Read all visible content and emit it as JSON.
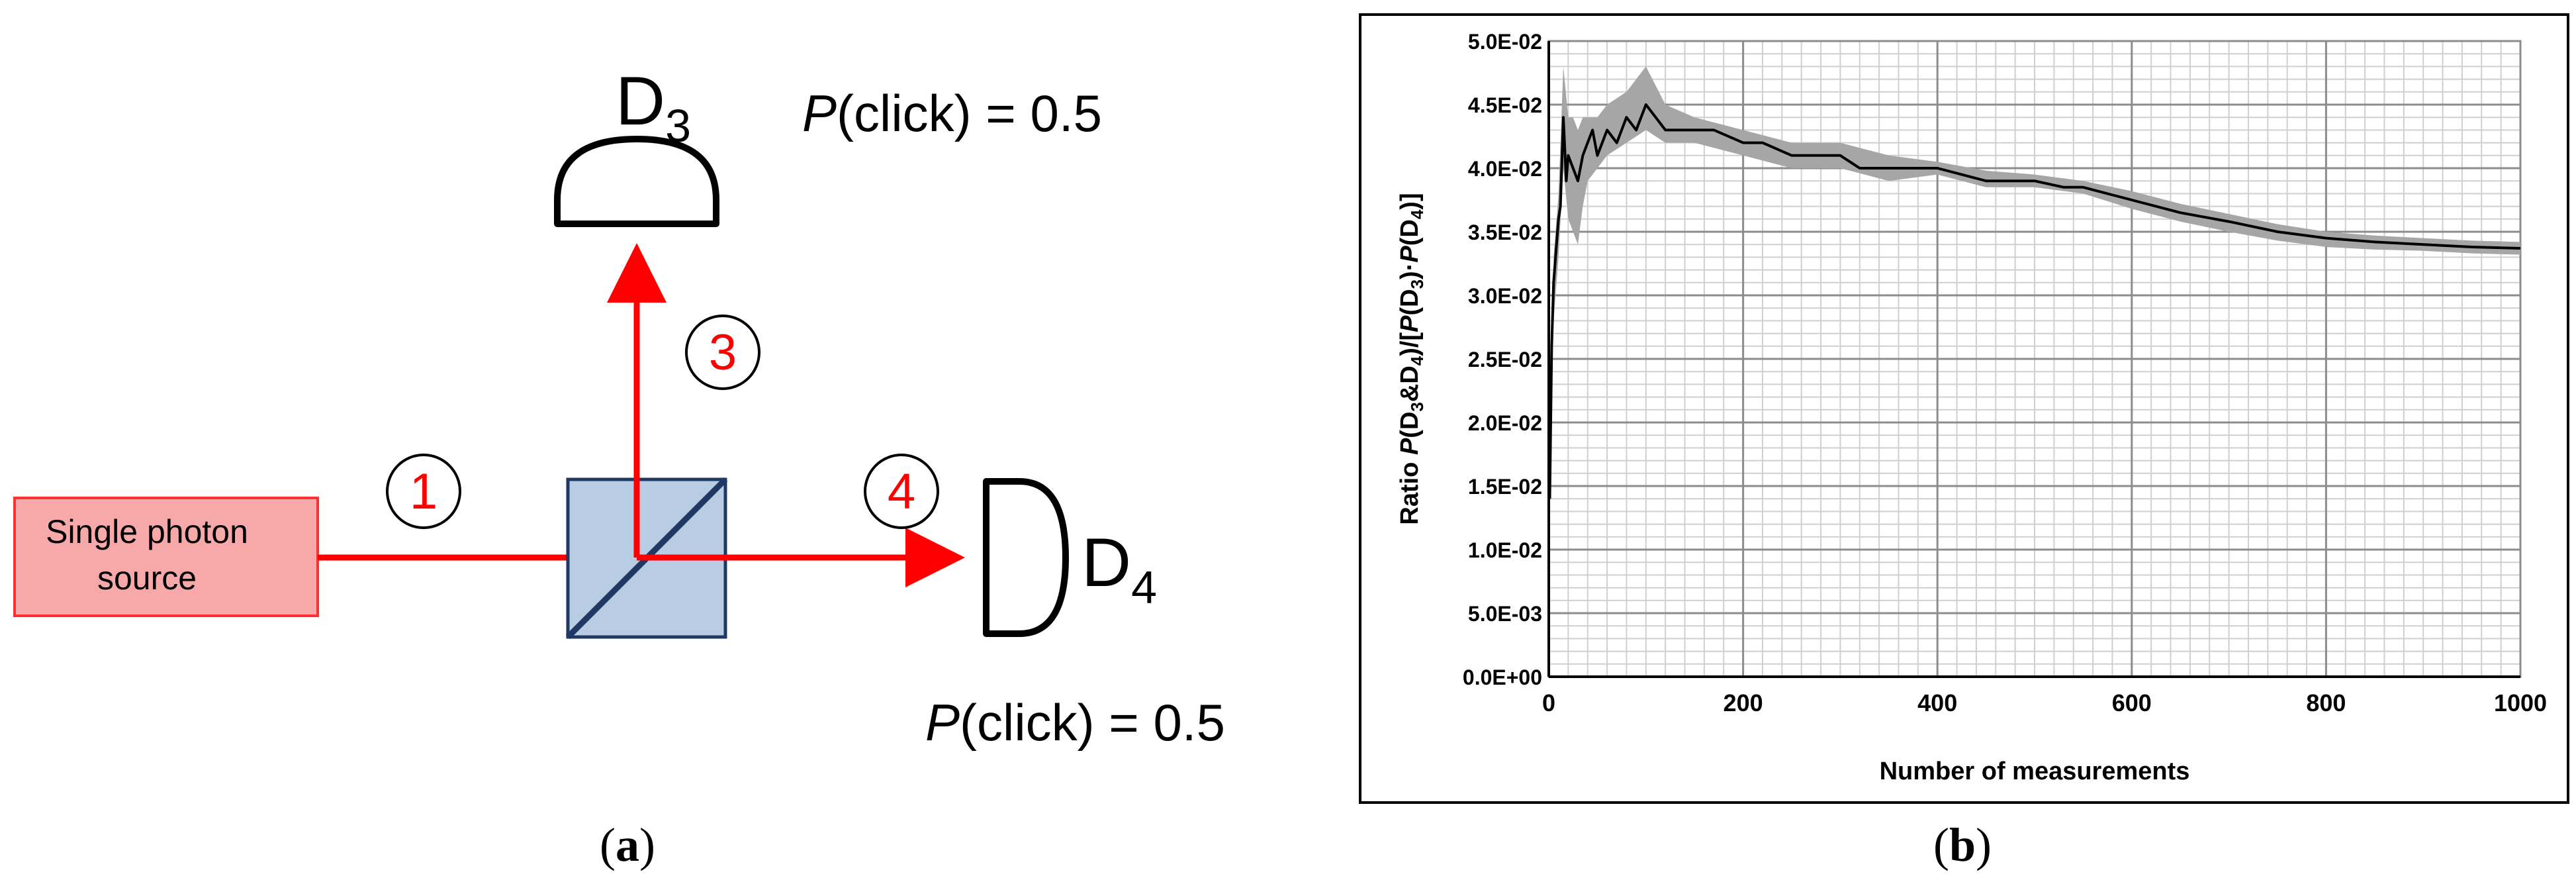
{
  "panel_a": {
    "source_label_line1": "Single photon",
    "source_label_line2": "source",
    "detector_d3": {
      "letter": "D",
      "subscript": "3"
    },
    "detector_d4": {
      "letter": "D",
      "subscript": "4"
    },
    "d3_prob": {
      "p": "P",
      "rest": "(click) = 0.5"
    },
    "d4_prob": {
      "p": "P",
      "rest": "(click) = 0.5"
    },
    "path_labels": [
      "1",
      "3",
      "4"
    ],
    "caption": {
      "open": "(",
      "letter": "a",
      "close": ")"
    },
    "colors": {
      "beam": "#ff0000",
      "source_fill": "#f7a8a8",
      "source_stroke": "#ff3030",
      "splitter_fill": "#b8cce4",
      "splitter_stroke": "#1f3864"
    }
  },
  "panel_b": {
    "caption": {
      "open": "(",
      "letter": "b",
      "close": ")"
    },
    "chart_data": {
      "type": "line",
      "xlabel": "Number of measurements",
      "ylabel_parts": [
        "Ratio ",
        "P",
        "(D",
        "3",
        "&D",
        "4",
        ")/[",
        "P",
        "(D",
        "3",
        ")·",
        "P",
        "(D",
        "4",
        ")]"
      ],
      "xlim": [
        0,
        1000
      ],
      "ylim": [
        0,
        0.05
      ],
      "x_ticks": [
        "0",
        "200",
        "400",
        "600",
        "800",
        "1000"
      ],
      "y_ticks": [
        "0.0E+00",
        "5.0E-03",
        "1.0E-02",
        "1.5E-02",
        "2.0E-02",
        "2.5E-02",
        "3.0E-02",
        "3.5E-02",
        "4.0E-02",
        "4.5E-02",
        "5.0E-02"
      ],
      "grid": true,
      "series": [
        {
          "color": "#000000",
          "x": [
            1,
            3,
            5,
            8,
            10,
            12,
            15,
            18,
            20,
            25,
            30,
            35,
            40,
            45,
            50,
            60,
            70,
            80,
            90,
            100,
            110,
            120,
            130,
            150,
            170,
            200,
            220,
            250,
            280,
            300,
            320,
            350,
            400,
            450,
            500,
            530,
            550,
            600,
            650,
            700,
            750,
            800,
            850,
            900,
            950,
            1000
          ],
          "y": [
            0.014,
            0.026,
            0.031,
            0.034,
            0.036,
            0.037,
            0.044,
            0.039,
            0.041,
            0.04,
            0.039,
            0.041,
            0.042,
            0.043,
            0.041,
            0.043,
            0.042,
            0.044,
            0.043,
            0.045,
            0.044,
            0.043,
            0.043,
            0.043,
            0.043,
            0.042,
            0.042,
            0.041,
            0.041,
            0.041,
            0.04,
            0.04,
            0.04,
            0.039,
            0.039,
            0.0385,
            0.0385,
            0.0375,
            0.0365,
            0.0358,
            0.035,
            0.0345,
            0.0342,
            0.034,
            0.0338,
            0.0337
          ]
        }
      ],
      "band": {
        "color": "#a6a6a6",
        "x": [
          5,
          10,
          15,
          20,
          25,
          30,
          35,
          40,
          50,
          60,
          80,
          100,
          120,
          150,
          200,
          250,
          300,
          350,
          400,
          450,
          500,
          550,
          600,
          650,
          700,
          750,
          800,
          850,
          900,
          950,
          1000
        ],
        "lower": [
          0.028,
          0.033,
          0.04,
          0.036,
          0.035,
          0.034,
          0.037,
          0.039,
          0.04,
          0.041,
          0.042,
          0.043,
          0.042,
          0.042,
          0.041,
          0.04,
          0.04,
          0.039,
          0.0395,
          0.0385,
          0.0385,
          0.038,
          0.0368,
          0.0358,
          0.035,
          0.0343,
          0.0338,
          0.0336,
          0.0335,
          0.0333,
          0.0332
        ],
        "upper": [
          0.033,
          0.038,
          0.048,
          0.044,
          0.044,
          0.043,
          0.044,
          0.044,
          0.044,
          0.045,
          0.046,
          0.048,
          0.045,
          0.044,
          0.043,
          0.042,
          0.042,
          0.041,
          0.0405,
          0.0398,
          0.0395,
          0.039,
          0.0382,
          0.0372,
          0.0364,
          0.0356,
          0.035,
          0.0347,
          0.0345,
          0.0343,
          0.0342
        ]
      }
    }
  }
}
